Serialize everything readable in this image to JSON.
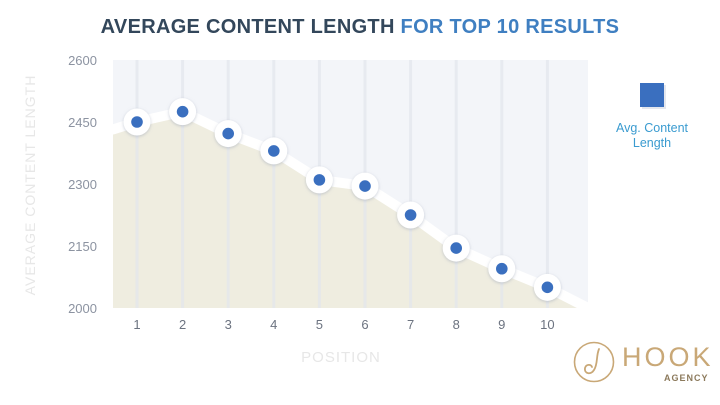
{
  "title": {
    "part1": "AVERAGE CONTENT LENGTH",
    "part2": "FOR TOP 10 RESULTS"
  },
  "brand": {
    "name": "HOOK",
    "sub": "AGENCY"
  },
  "colors": {
    "title_dark": "#33475b",
    "title_accent": "#3f7fc1",
    "point": "#3a6fbf",
    "area_fill": "#efede0",
    "plot_bg": "#f3f5f9",
    "legend_text": "#3a9bd0",
    "axis_title": "#e7e7e7",
    "brand": "#c9a877"
  },
  "chart_data": {
    "type": "area",
    "title": "AVERAGE CONTENT LENGTH FOR TOP 10 RESULTS",
    "xlabel": "POSITION",
    "ylabel": "AVERAGE CONTENT LENGTH",
    "x": [
      1,
      2,
      3,
      4,
      5,
      6,
      7,
      8,
      9,
      10
    ],
    "xticks": [
      "1",
      "2",
      "3",
      "4",
      "5",
      "6",
      "7",
      "8",
      "9",
      "10"
    ],
    "yticks": [
      "2000",
      "2150",
      "2300",
      "2450",
      "2600"
    ],
    "ylim": [
      2000,
      2600
    ],
    "series": [
      {
        "name": "Avg. Content Length",
        "values": [
          2450,
          2475,
          2422,
          2380,
          2310,
          2295,
          2225,
          2145,
          2095,
          2050
        ]
      }
    ],
    "legend": {
      "position": "right",
      "label_line1": "Avg. Content",
      "label_line2": "Length"
    },
    "grid": {
      "vertical": true,
      "horizontal": false
    }
  }
}
